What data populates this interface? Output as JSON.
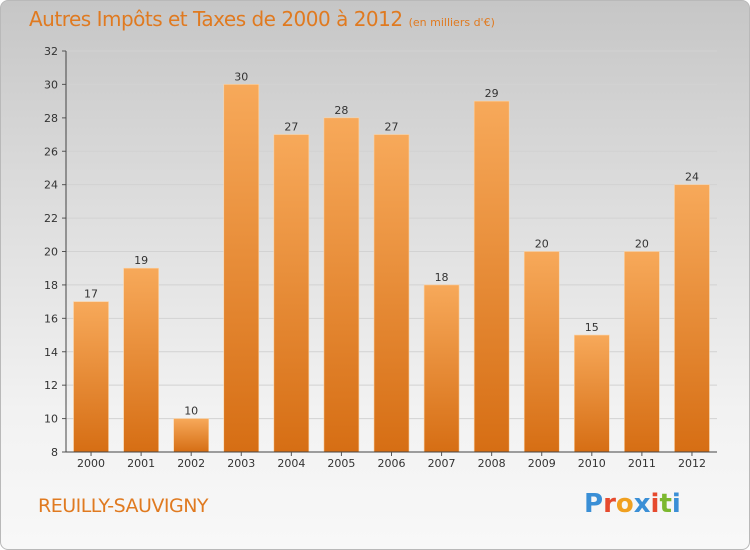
{
  "header": {
    "title": "Autres Impôts et Taxes de 2000 à 2012",
    "subtitle": "(en milliers d'€)"
  },
  "footer": {
    "commune": "REUILLY-SAUVIGNY",
    "brand_letters": [
      "P",
      "r",
      "o",
      "x",
      "i",
      "t",
      "i"
    ]
  },
  "colors": {
    "title": "#e07a20",
    "bar_top": "#f7a95a",
    "bar_bottom": "#d66e14",
    "brand": [
      "#3a8fd6",
      "#e64a2e",
      "#f0a020",
      "#3a8fd6",
      "#e64a2e",
      "#7cb82f",
      "#3a8fd6"
    ]
  },
  "chart_data": {
    "type": "bar",
    "title": "Autres Impôts et Taxes de 2000 à 2012",
    "subtitle": "(en milliers d'€)",
    "xlabel": "",
    "ylabel": "",
    "categories": [
      "2000",
      "2001",
      "2002",
      "2003",
      "2004",
      "2005",
      "2006",
      "2007",
      "2008",
      "2009",
      "2010",
      "2011",
      "2012"
    ],
    "values": [
      17,
      19,
      10,
      30,
      27,
      28,
      27,
      18,
      29,
      20,
      15,
      20,
      24
    ],
    "ylim": [
      8,
      32
    ],
    "yticks": [
      8,
      10,
      12,
      14,
      16,
      18,
      20,
      22,
      24,
      26,
      28,
      30,
      32
    ],
    "grid": true,
    "legend": "none"
  }
}
